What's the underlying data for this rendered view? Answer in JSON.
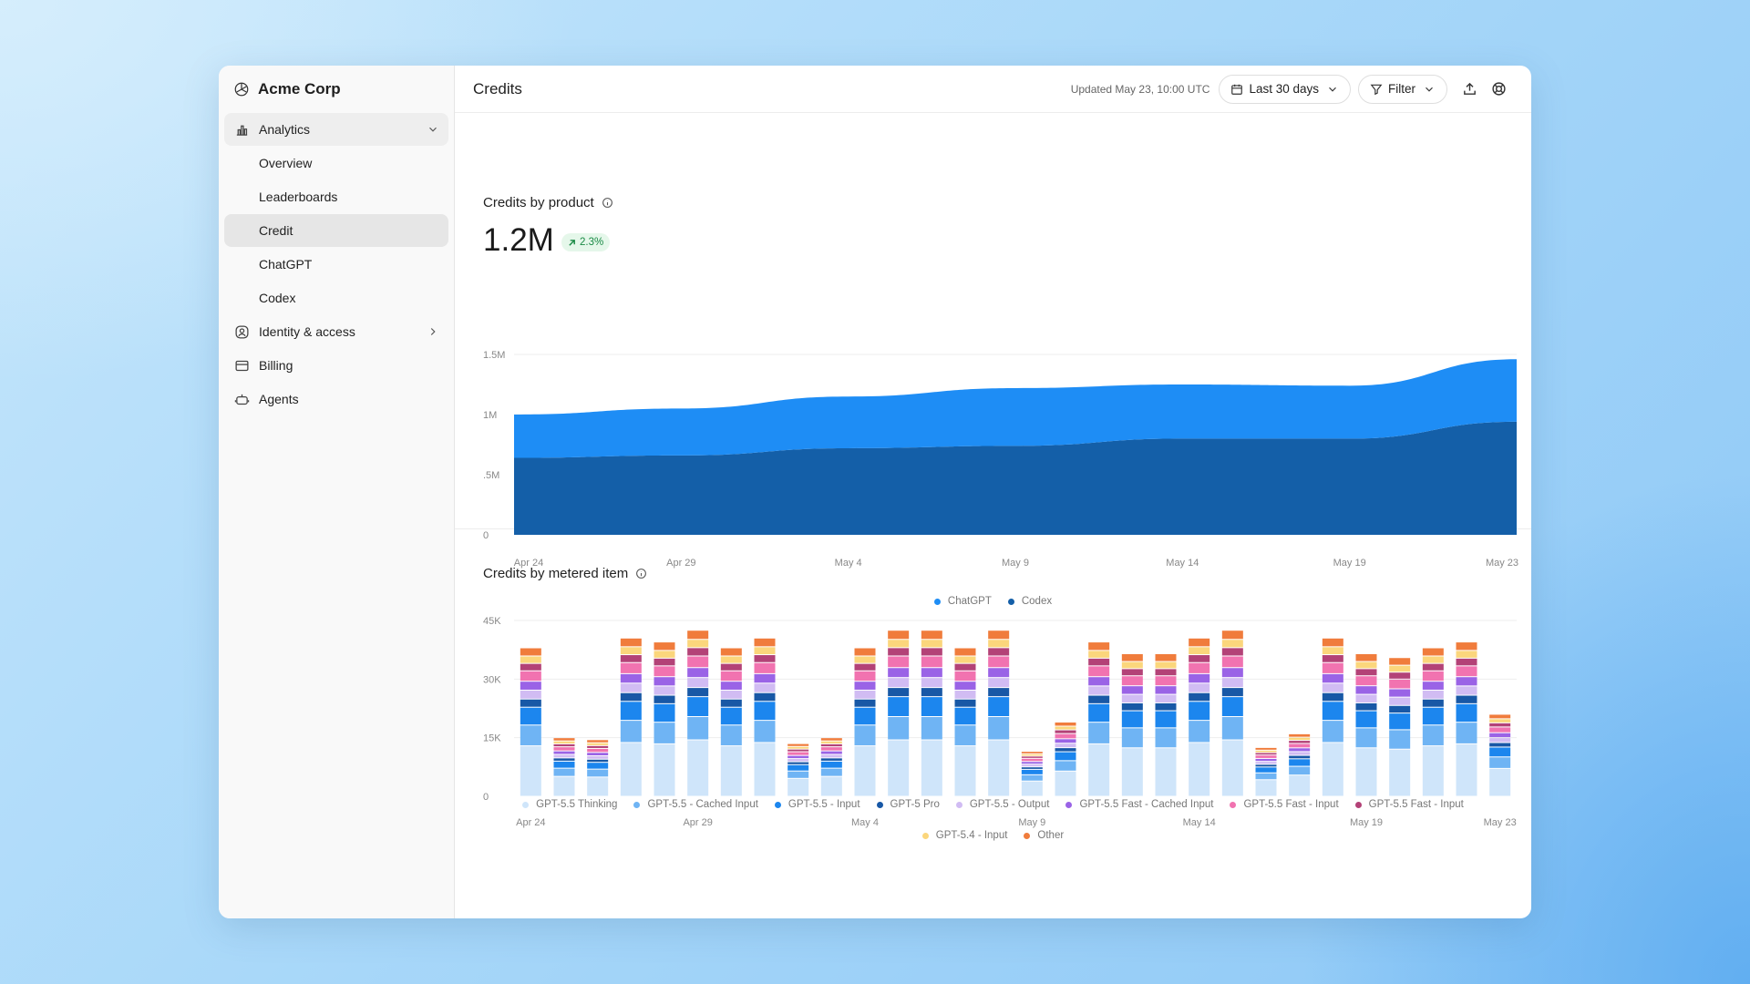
{
  "org": {
    "name": "Acme Corp"
  },
  "sidebar": {
    "analytics_label": "Analytics",
    "sub_items": [
      {
        "label": "Overview"
      },
      {
        "label": "Leaderboards"
      },
      {
        "label": "Credit",
        "active": true
      },
      {
        "label": "ChatGPT"
      },
      {
        "label": "Codex"
      }
    ],
    "identity_label": "Identity & access",
    "billing_label": "Billing",
    "agents_label": "Agents"
  },
  "header": {
    "title": "Credits",
    "updated": "Updated May 23, 10:00 UTC",
    "date_range": "Last 30 days",
    "filter": "Filter"
  },
  "credits_by_product": {
    "title": "Credits by product",
    "total": "1.2M",
    "change": "2.3%",
    "change_color": "#1a8a45"
  },
  "credits_by_metered_item": {
    "title": "Credits by metered item"
  },
  "chart_data": [
    {
      "type": "area",
      "stacked": true,
      "y_tick_labels": [
        "0",
        ".5M",
        "1M",
        "1.5M"
      ],
      "ylim": [
        0,
        1500000
      ],
      "x_tick_labels": [
        "Apr 24",
        "Apr 29",
        "May 4",
        "May 9",
        "May 14",
        "May 19",
        "May 23"
      ],
      "x": [
        "Apr 24",
        "Apr 29",
        "May 4",
        "May 9",
        "May 14",
        "May 19",
        "May 23"
      ],
      "grid": true,
      "legend_position": "bottom",
      "series": [
        {
          "name": "Codex",
          "color": "#145fa8",
          "values": [
            640000,
            660000,
            720000,
            740000,
            800000,
            800000,
            940000
          ]
        },
        {
          "name": "ChatGPT",
          "color": "#1e8df5",
          "values": [
            360000,
            390000,
            430000,
            480000,
            450000,
            440000,
            520000
          ]
        }
      ]
    },
    {
      "type": "bar",
      "stacked": true,
      "y_tick_labels": [
        "0",
        "15K",
        "30K",
        "45K"
      ],
      "ylim": [
        0,
        45000
      ],
      "x_tick_labels": [
        "Apr 24",
        "Apr 29",
        "May 4",
        "May 9",
        "May 14",
        "May 19",
        "May 23"
      ],
      "grid": true,
      "legend_position": "bottom",
      "totals": [
        38000,
        15000,
        14500,
        40500,
        39500,
        42500,
        38000,
        40500,
        13500,
        15000,
        38000,
        42500,
        42500,
        38000,
        42500,
        11500,
        19000,
        39500,
        36500,
        36500,
        40500,
        42500,
        12500,
        16000,
        40500,
        36500,
        35500,
        38000,
        39500,
        21000
      ],
      "series": [
        {
          "name": "GPT-5.5 Thinking",
          "color": "#cfe5fa"
        },
        {
          "name": "GPT-5.5 - Cached Input",
          "color": "#6fb4f4"
        },
        {
          "name": "GPT-5.5 - Input",
          "color": "#1c86ee"
        },
        {
          "name": "GPT-5 Pro",
          "color": "#1858a6"
        },
        {
          "name": "GPT-5.5 - Output",
          "color": "#d1bcf3"
        },
        {
          "name": "GPT-5.5 Fast - Cached Input",
          "color": "#9a63e6"
        },
        {
          "name": "GPT-5.5 Fast - Input",
          "color": "#f173b0"
        },
        {
          "name": "GPT-5.5 Fast - Input",
          "color": "#b34277"
        },
        {
          "name": "GPT-5.4 - Input",
          "color": "#fbd67c"
        },
        {
          "name": "Other",
          "color": "#f07c3c"
        }
      ]
    }
  ]
}
